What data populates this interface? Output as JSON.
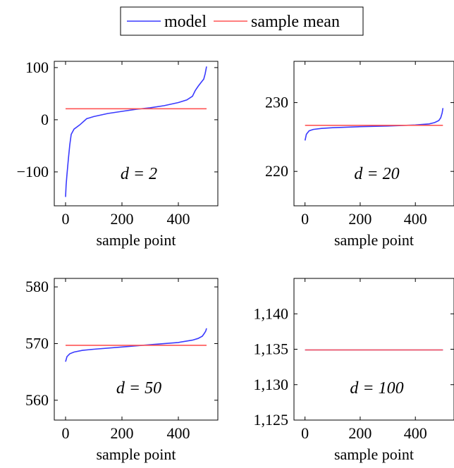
{
  "legend": {
    "entries": [
      {
        "label": "model",
        "color": "#3a3aff"
      },
      {
        "label": "sample mean",
        "color": "#ff5555"
      }
    ],
    "placement": "top-center"
  },
  "chart_data": [
    {
      "type": "line",
      "annotation": "d = 2",
      "xlabel": "sample point",
      "ylabel": "",
      "xlim": [
        -40,
        540
      ],
      "ylim": [
        -165,
        112
      ],
      "xticks": [
        0,
        200,
        400
      ],
      "xtick_labels": [
        "0",
        "200",
        "400"
      ],
      "yticks": [
        -100,
        0,
        100
      ],
      "ytick_labels": [
        "−100",
        "0",
        "100"
      ],
      "series": [
        {
          "name": "model",
          "color": "#3a3aff",
          "x": [
            0,
            2,
            5,
            10,
            15,
            20,
            30,
            50,
            75,
            100,
            150,
            200,
            250,
            300,
            350,
            400,
            430,
            450,
            460,
            470,
            480,
            490,
            495,
            500
          ],
          "y": [
            -148,
            -125,
            -105,
            -75,
            -48,
            -28,
            -18,
            -10,
            2,
            6,
            12,
            16,
            20,
            23,
            27,
            33,
            38,
            45,
            56,
            64,
            71,
            78,
            88,
            102
          ]
        },
        {
          "name": "sample mean",
          "color": "#ff5555",
          "x": [
            0,
            500
          ],
          "y": [
            21,
            21
          ]
        }
      ]
    },
    {
      "type": "line",
      "annotation": "d = 20",
      "xlabel": "sample point",
      "ylabel": "",
      "xlim": [
        -40,
        540
      ],
      "ylim": [
        215,
        236
      ],
      "xticks": [
        0,
        200,
        400
      ],
      "xtick_labels": [
        "0",
        "200",
        "400"
      ],
      "yticks": [
        220,
        230
      ],
      "ytick_labels": [
        "220",
        "230"
      ],
      "series": [
        {
          "name": "model",
          "color": "#3a3aff",
          "x": [
            0,
            5,
            15,
            30,
            60,
            100,
            200,
            300,
            400,
            450,
            470,
            485,
            492,
            497,
            500
          ],
          "y": [
            224.5,
            225.4,
            225.9,
            226.1,
            226.25,
            226.35,
            226.5,
            226.6,
            226.75,
            226.9,
            227.1,
            227.4,
            227.8,
            228.5,
            229.2
          ]
        },
        {
          "name": "sample mean",
          "color": "#ff5555",
          "x": [
            0,
            500
          ],
          "y": [
            226.7,
            226.7
          ]
        }
      ]
    },
    {
      "type": "line",
      "annotation": "d = 50",
      "xlabel": "sample point",
      "ylabel": "",
      "xlim": [
        -40,
        540
      ],
      "ylim": [
        556.5,
        581.5
      ],
      "xticks": [
        0,
        200,
        400
      ],
      "xtick_labels": [
        "0",
        "200",
        "400"
      ],
      "yticks": [
        560,
        570,
        580
      ],
      "ytick_labels": [
        "560",
        "570",
        "580"
      ],
      "series": [
        {
          "name": "model",
          "color": "#3a3aff",
          "x": [
            0,
            5,
            15,
            30,
            60,
            100,
            200,
            300,
            400,
            450,
            470,
            485,
            492,
            497,
            500
          ],
          "y": [
            566.8,
            567.7,
            568.2,
            568.5,
            568.8,
            569.0,
            569.4,
            569.8,
            570.2,
            570.6,
            570.9,
            571.3,
            571.8,
            572.2,
            572.7
          ]
        },
        {
          "name": "sample mean",
          "color": "#ff5555",
          "x": [
            0,
            500
          ],
          "y": [
            569.7,
            569.7
          ]
        }
      ]
    },
    {
      "type": "line",
      "annotation": "d = 100",
      "xlabel": "sample point",
      "ylabel": "",
      "xlim": [
        -40,
        540
      ],
      "ylim": [
        1125,
        1145
      ],
      "xticks": [
        0,
        200,
        400
      ],
      "xtick_labels": [
        "0",
        "200",
        "400"
      ],
      "yticks": [
        1125,
        1130,
        1135,
        1140
      ],
      "ytick_labels": [
        "1,125",
        "1,130",
        "1,135",
        "1,140"
      ],
      "series": [
        {
          "name": "model",
          "color": "#3a3aff",
          "x": [
            0,
            500
          ],
          "y": [
            1134.9,
            1134.9
          ]
        },
        {
          "name": "sample mean",
          "color": "#ff5555",
          "x": [
            0,
            500
          ],
          "y": [
            1134.9,
            1134.9
          ]
        }
      ]
    }
  ]
}
